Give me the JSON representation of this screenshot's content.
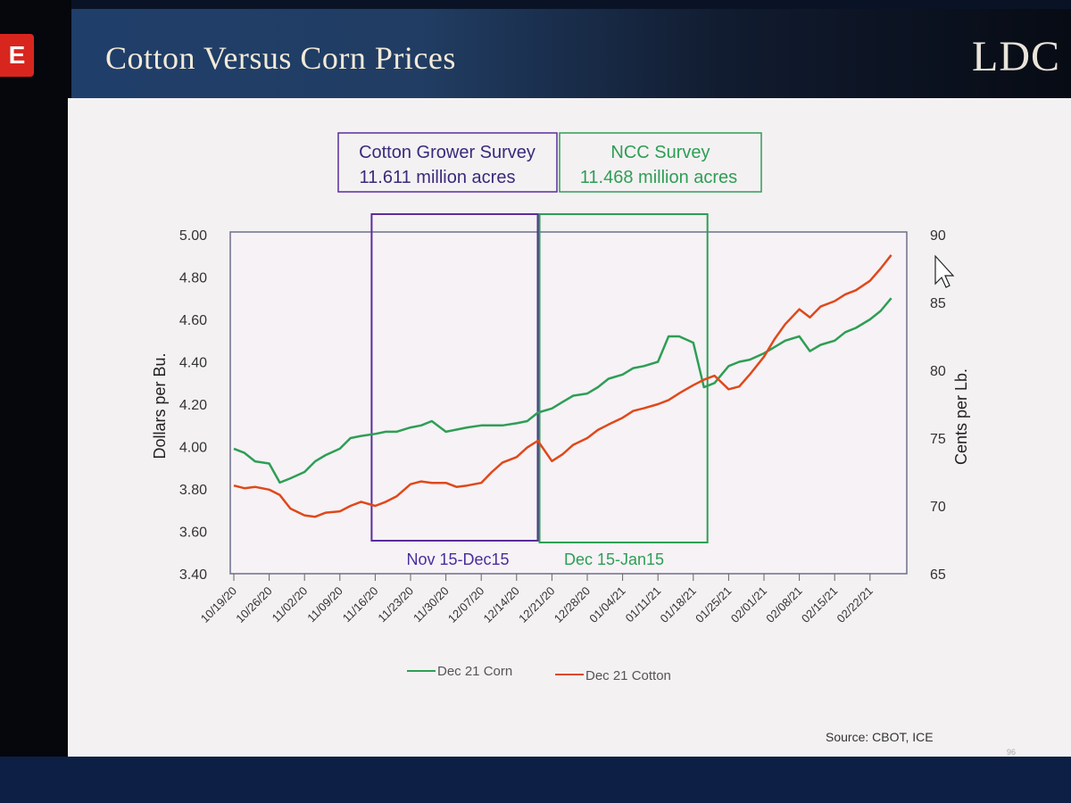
{
  "app_badge": "E",
  "slide": {
    "title": "Cotton Versus Corn Prices",
    "logo": "LDC",
    "source": "Source: CBOT, ICE",
    "page_number": "96"
  },
  "colors": {
    "corn": "#2e9e54",
    "cotton": "#e0481a",
    "cotton_window": "#5a2d9c",
    "ncc_window": "#2e9e54"
  },
  "surveys": [
    {
      "title": "Cotton Grower Survey",
      "value": "11.611 million acres",
      "period": "Nov 15-Dec15"
    },
    {
      "title": "NCC Survey",
      "value": "11.468 million acres",
      "period": "Dec 15-Jan15"
    }
  ],
  "chart_data": {
    "type": "line",
    "title": "",
    "ylabel": "Dollars per Bu.",
    "y2label": "Cents per Lb.",
    "ylim": [
      3.4,
      5.0
    ],
    "y2lim": [
      65,
      90
    ],
    "yticks": [
      "5.00",
      "4.80",
      "4.60",
      "4.40",
      "4.20",
      "4.00",
      "3.80",
      "3.60",
      "3.40"
    ],
    "y2ticks": [
      "90",
      "85",
      "80",
      "75",
      "70",
      "65"
    ],
    "x_categories": [
      "10/19/20",
      "10/26/20",
      "11/02/20",
      "11/09/20",
      "11/16/20",
      "11/23/20",
      "11/30/20",
      "12/07/20",
      "12/14/20",
      "12/21/20",
      "12/28/20",
      "01/04/21",
      "01/11/21",
      "01/18/21",
      "01/25/21",
      "02/01/21",
      "02/08/21",
      "02/15/21",
      "02/22/21"
    ],
    "legend": [
      "Dec 21 Corn",
      "Dec 21 Cotton"
    ],
    "legend_position": "bottom",
    "shaded_windows": [
      [
        4.0,
        8.7
      ],
      [
        8.7,
        13.3
      ]
    ],
    "series": [
      {
        "name": "Dec 21 Corn",
        "axis": "left",
        "x": [
          0,
          0.3,
          0.6,
          1,
          1.3,
          1.6,
          2,
          2.3,
          2.6,
          3,
          3.3,
          3.6,
          4,
          4.3,
          4.6,
          5,
          5.3,
          5.6,
          6,
          6.3,
          6.6,
          7,
          7.3,
          7.6,
          8,
          8.3,
          8.6,
          9,
          9.3,
          9.6,
          10,
          10.3,
          10.6,
          11,
          11.3,
          11.6,
          12,
          12.3,
          12.6,
          13,
          13.3,
          13.6,
          14,
          14.3,
          14.6,
          15,
          15.3,
          15.6,
          16,
          16.3,
          16.6,
          17,
          17.3,
          17.6,
          18,
          18.3,
          18.6
        ],
        "values": [
          3.99,
          3.97,
          3.93,
          3.92,
          3.83,
          3.85,
          3.88,
          3.93,
          3.96,
          3.99,
          4.04,
          4.05,
          4.06,
          4.07,
          4.07,
          4.09,
          4.1,
          4.12,
          4.07,
          4.08,
          4.09,
          4.1,
          4.1,
          4.1,
          4.11,
          4.12,
          4.16,
          4.18,
          4.21,
          4.24,
          4.25,
          4.28,
          4.32,
          4.34,
          4.37,
          4.38,
          4.4,
          4.52,
          4.52,
          4.49,
          4.28,
          4.3,
          4.38,
          4.4,
          4.41,
          4.44,
          4.47,
          4.5,
          4.52,
          4.45,
          4.48,
          4.5,
          4.54,
          4.56,
          4.6,
          4.64,
          4.7
        ]
      },
      {
        "name": "Dec 21 Cotton",
        "axis": "right",
        "x": [
          0,
          0.3,
          0.6,
          1,
          1.3,
          1.6,
          2,
          2.3,
          2.6,
          3,
          3.3,
          3.6,
          4,
          4.3,
          4.6,
          5,
          5.3,
          5.6,
          6,
          6.3,
          6.6,
          7,
          7.3,
          7.6,
          8,
          8.3,
          8.6,
          9,
          9.3,
          9.6,
          10,
          10.3,
          10.6,
          11,
          11.3,
          11.6,
          12,
          12.3,
          12.6,
          13,
          13.3,
          13.6,
          14,
          14.3,
          14.6,
          15,
          15.3,
          15.6,
          16,
          16.3,
          16.6,
          17,
          17.3,
          17.6,
          18,
          18.3,
          18.6
        ],
        "values": [
          71.5,
          71.3,
          71.4,
          71.2,
          70.8,
          69.8,
          69.3,
          69.2,
          69.5,
          69.6,
          70.0,
          70.3,
          70.0,
          70.3,
          70.7,
          71.6,
          71.8,
          71.7,
          71.7,
          71.4,
          71.5,
          71.7,
          72.5,
          73.2,
          73.6,
          74.3,
          74.8,
          73.3,
          73.8,
          74.5,
          75.0,
          75.6,
          76.0,
          76.5,
          77.0,
          77.2,
          77.5,
          77.8,
          78.3,
          78.9,
          79.3,
          79.6,
          78.6,
          78.8,
          79.7,
          81.0,
          82.3,
          83.4,
          84.5,
          83.9,
          84.7,
          85.1,
          85.6,
          85.9,
          86.6,
          87.5,
          88.5
        ]
      }
    ]
  }
}
